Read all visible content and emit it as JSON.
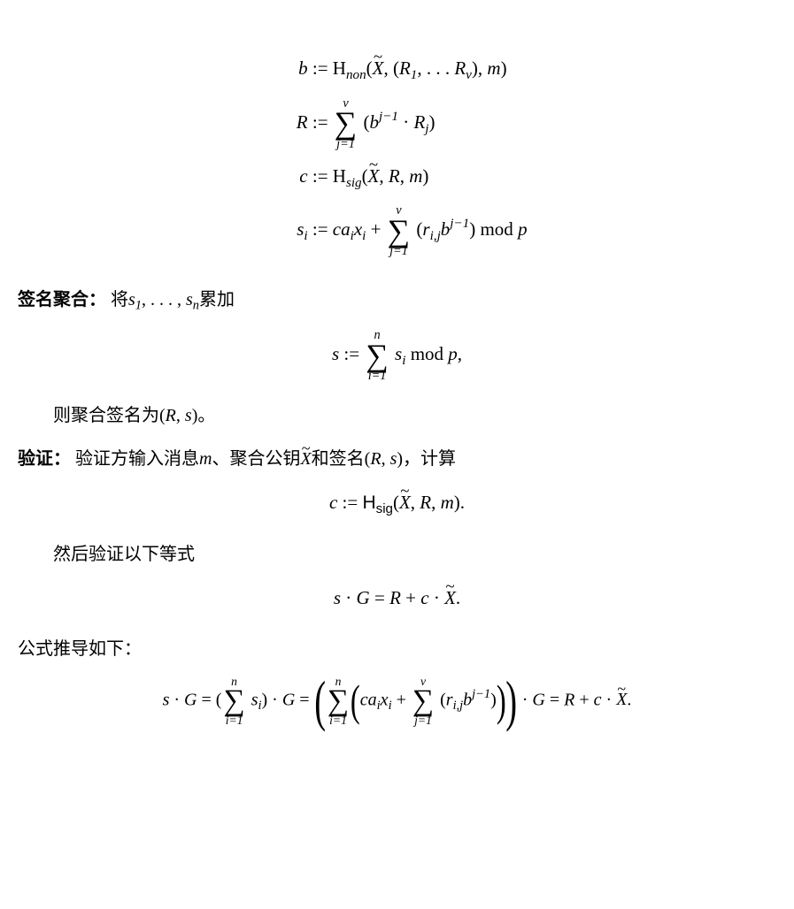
{
  "eq1": {
    "l1_lhs": "b",
    "l1_rhs_a": " := H",
    "l1_sub": "non",
    "l1_rhs_b": "(X̃, (R",
    "l1_rhs_b_plain_open": "(",
    "l1_Xsym": "X",
    "l1_comma_open": ", (",
    "l1_R": "R",
    "l1_1": "1",
    "l1_dots": ", . . . ",
    "l1_Rv_R": "R",
    "l1_v": "v",
    "l1_close": "), ",
    "l1_m": "m",
    "l1_end": ")",
    "l2_lhs": "R",
    "l2_assign": " := ",
    "l2_sum_top": "v",
    "l2_sum_bot": "j=1",
    "l2_open": " (",
    "l2_b": "b",
    "l2_exp": "j−1",
    "l2_cdot": " · ",
    "l2_Rj_R": "R",
    "l2_j": "j",
    "l2_close": ")",
    "l3_lhs": "c",
    "l3_assign": " := H",
    "l3_sub": "sig",
    "l3_open": "(",
    "l3_X": "X",
    "l3_mid": ", ",
    "l3_R": "R",
    "l3_mid2": ", ",
    "l3_m": "m",
    "l3_close": ")",
    "l4_lhs_s": "s",
    "l4_lhs_i": "i",
    "l4_assign": " := ",
    "l4_ca": "ca",
    "l4_ai": "i",
    "l4_x": "x",
    "l4_xi": "i",
    "l4_plus": " + ",
    "l4_sum_top": "v",
    "l4_sum_bot": "j=1",
    "l4_open": " (",
    "l4_r": "r",
    "l4_rij": "i,j",
    "l4_b": "b",
    "l4_exp": "j−1",
    "l4_close": ")  mod  ",
    "l4_p": "p"
  },
  "sec_agg_label": "签名聚合：",
  "sec_agg_text_a": "  将",
  "sec_agg_s": "s",
  "sec_agg_1": "1",
  "sec_agg_dots": ", . . . , ",
  "sec_agg_sn_s": "s",
  "sec_agg_n": "n",
  "sec_agg_text_b": "累加",
  "eq2": {
    "lhs_s": "s",
    "assign": " := ",
    "sum_top": "n",
    "sum_bot": "i=1",
    "si_s": " s",
    "si_i": "i",
    "mod": "    mod  ",
    "p": "p",
    "comma": ","
  },
  "agg_result_a": "则聚合签名为(",
  "agg_result_R": "R",
  "agg_result_mid": ", ",
  "agg_result_s": "s",
  "agg_result_b": ")。",
  "sec_ver_label": "验证：",
  "sec_ver_text_a": "  验证方输入消息",
  "sec_ver_m": "m",
  "sec_ver_text_b": "、聚合公钥",
  "sec_ver_X": "X",
  "sec_ver_text_c": "和签名(",
  "sec_ver_R": "R",
  "sec_ver_mid": ", ",
  "sec_ver_s": "s",
  "sec_ver_text_d": ")，计算",
  "eq3": {
    "lhs": "c",
    "assign": " := ",
    "H": "H",
    "sig": "sig",
    "open": "(",
    "X": "X",
    "mid1": ", ",
    "R": "R",
    "mid2": ", ",
    "m": "m",
    "close": ")."
  },
  "ver_then": "然后验证以下等式",
  "eq4": {
    "s": "s",
    "cdot1": " · ",
    "G": "G",
    "eq": " = ",
    "R": "R",
    "plus": " + ",
    "c": "c",
    "cdot2": " · ",
    "X": "X",
    "dot": "."
  },
  "derive": "公式推导如下：",
  "eq5": {
    "s": "s",
    "cdot": " · ",
    "G": "G",
    "eq": " = ",
    "open1": "(",
    "sum1_top": "n",
    "sum1_bot": "i=1",
    "si_s": " s",
    "si_i": "i",
    "close1": ") · ",
    "G2": "G",
    "eq2": " = ",
    "sum2_top": "n",
    "sum2_bot": "i=1",
    "ca": "ca",
    "ai": "i",
    "x": "x",
    "xi": "i",
    "plus": " + ",
    "sum3_top": "v",
    "sum3_bot": "j=1",
    "r": "r",
    "rij": "i,j",
    "b": "b",
    "exp": "j−1",
    "cdotG": " · ",
    "G3": "G",
    "eq3": " = ",
    "R": "R",
    "plus2": " + ",
    "c": "c",
    "cdot3": " · ",
    "X": "X",
    "dot": "."
  }
}
